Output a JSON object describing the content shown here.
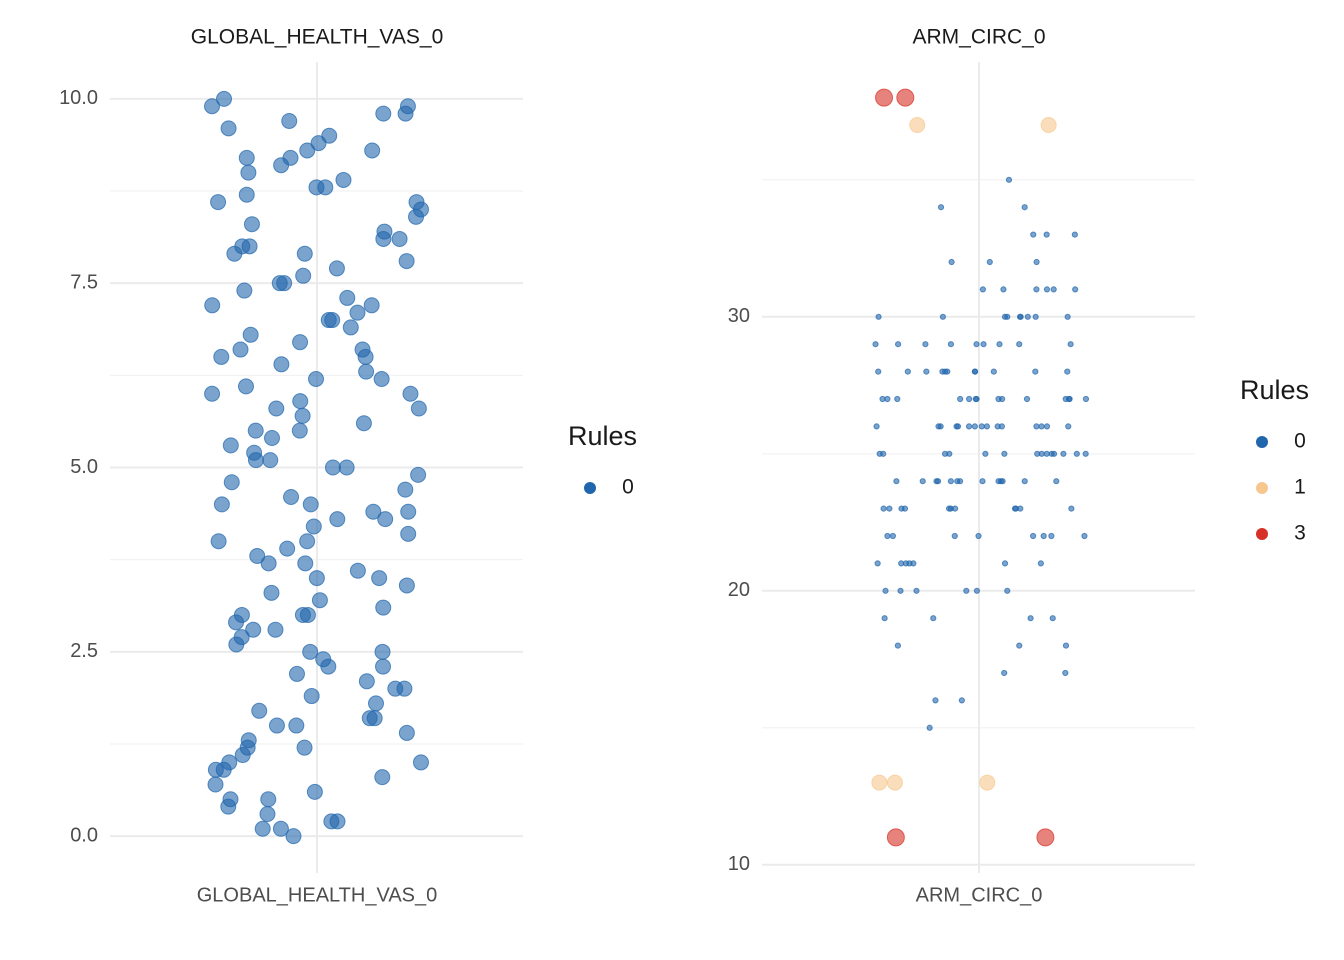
{
  "chart_data": [
    {
      "type": "strip",
      "title": "GLOBAL_HEALTH_VAS_0",
      "categories": [
        "GLOBAL_HEALTH_VAS_0"
      ],
      "legend_title": "Rules",
      "ylim": [
        -0.5,
        10.5
      ],
      "yticks": [
        {
          "value": 0,
          "label": "0.0"
        },
        {
          "value": 2.5,
          "label": "2.5"
        },
        {
          "value": 5,
          "label": "5.0"
        },
        {
          "value": 7.5,
          "label": "7.5"
        },
        {
          "value": 10,
          "label": "10.0"
        }
      ],
      "minor_yticks": [
        1.25,
        3.75,
        6.25,
        8.75
      ],
      "grid": true,
      "series": [
        {
          "name": "0",
          "color": "#2166ac",
          "marker_size": 7.5,
          "values": [
            9.9,
            9.8,
            10.0,
            9.5,
            9.2,
            9.3,
            8.9,
            8.7,
            9.1,
            8.8,
            8.4,
            8.2,
            8.0,
            8.5,
            8.1,
            7.9,
            7.8,
            7.6,
            7.3,
            7.5,
            7.2,
            7.0,
            6.9,
            6.7,
            6.6,
            6.4,
            6.2,
            6.0,
            6.1,
            5.9,
            5.8,
            5.6,
            5.4,
            5.5,
            5.2,
            5.0,
            4.9,
            4.7,
            4.5,
            4.4,
            4.3,
            4.1,
            4.0,
            3.8,
            3.6,
            3.5,
            3.3,
            3.2,
            3.0,
            2.9,
            2.8,
            2.6,
            2.5,
            2.3,
            2.2,
            2.0,
            1.9,
            1.7,
            1.5,
            1.3,
            1.2,
            1.0,
            0.8,
            0.7,
            0.5,
            0.4,
            0.2,
            0.1,
            0.0,
            0.1,
            9.7,
            9.4,
            9.0,
            8.6,
            8.3,
            7.7,
            7.4,
            7.1,
            6.8,
            6.5,
            6.3,
            5.7,
            5.3,
            5.1,
            4.8,
            4.6,
            4.2,
            3.9,
            3.7,
            3.4,
            3.1,
            2.7,
            2.4,
            2.1,
            1.8,
            1.6,
            1.4,
            1.1,
            0.9,
            0.6,
            0.3,
            9.9,
            9.6,
            9.2,
            8.8,
            8.1,
            7.5,
            7.0,
            6.6,
            6.0,
            5.5,
            5.0,
            4.5,
            4.0,
            3.5,
            3.0,
            2.5,
            2.0,
            1.5,
            1.0,
            0.5,
            9.3,
            8.6,
            7.9,
            7.2,
            6.5,
            5.8,
            5.1,
            4.4,
            3.7,
            3.0,
            2.3,
            1.6,
            0.9,
            0.2,
            9.8,
            8.0,
            6.2,
            4.3,
            2.8,
            1.2
          ]
        }
      ]
    },
    {
      "type": "strip",
      "title": "ARM_CIRC_0",
      "categories": [
        "ARM_CIRC_0"
      ],
      "legend_title": "Rules",
      "ylim": [
        9.7,
        39.3
      ],
      "yticks": [
        10,
        20,
        30
      ],
      "minor_yticks": [
        15,
        25,
        35
      ],
      "grid": true,
      "series": [
        {
          "name": "0",
          "color": "#2166ac",
          "marker_size": 2.6,
          "values": [
            15,
            16,
            16,
            17,
            17,
            18,
            18,
            18,
            19,
            19,
            19,
            19,
            20,
            20,
            20,
            20,
            20,
            20,
            21,
            21,
            21,
            21,
            21,
            21,
            21,
            22,
            22,
            22,
            22,
            22,
            22,
            22,
            22,
            23,
            23,
            23,
            23,
            23,
            23,
            23,
            23,
            23,
            23,
            23,
            24,
            24,
            24,
            24,
            24,
            24,
            24,
            24,
            24,
            24,
            24,
            24,
            24,
            25,
            25,
            25,
            25,
            25,
            25,
            25,
            25,
            25,
            25,
            25,
            25,
            25,
            25,
            26,
            26,
            26,
            26,
            26,
            26,
            26,
            26,
            26,
            26,
            26,
            26,
            26,
            26,
            26,
            27,
            27,
            27,
            27,
            27,
            27,
            27,
            27,
            27,
            27,
            27,
            27,
            27,
            27,
            28,
            28,
            28,
            28,
            28,
            28,
            28,
            28,
            28,
            28,
            28,
            29,
            29,
            29,
            29,
            29,
            29,
            29,
            29,
            29,
            30,
            30,
            30,
            30,
            30,
            30,
            30,
            30,
            30,
            31,
            31,
            31,
            31,
            31,
            31,
            32,
            32,
            32,
            33,
            33,
            33,
            34,
            34,
            35
          ]
        },
        {
          "name": "1",
          "color": "#f7c88e",
          "marker_size": 7.5,
          "values": [
            37,
            37,
            13,
            13,
            13
          ]
        },
        {
          "name": "3",
          "color": "#d73027",
          "marker_size": 8.5,
          "values": [
            38,
            38,
            11,
            11
          ]
        }
      ]
    }
  ]
}
